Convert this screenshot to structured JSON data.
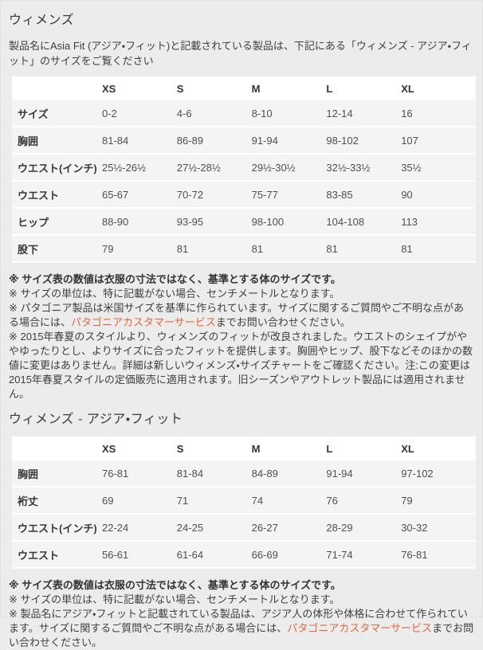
{
  "page": {
    "headings": {
      "womens": "ウィメンズ",
      "womens_asia_fit": "ウィメンズ - アジア・フィット"
    },
    "intro": "製品名にAsia Fit (アジア・フィット)と記載されている製品は、下記にある「ウィメンズ - アジア・フィット」のサイズをご覧ください"
  },
  "colors": {
    "page_background": "#ececec",
    "table_header_background": "#ffffff",
    "table_row_background": "#f4f4f4",
    "link": "#e0673d",
    "text": "#3f3f3f"
  },
  "tables": {
    "womens": {
      "columns": [
        "XS",
        "S",
        "M",
        "L",
        "XL"
      ],
      "rows": [
        {
          "label": "サイズ",
          "values": [
            "0-2",
            "4-6",
            "8-10",
            "12-14",
            "16"
          ]
        },
        {
          "label": "胸囲",
          "values": [
            "81-84",
            "86-89",
            "91-94",
            "98-102",
            "107"
          ]
        },
        {
          "label": "ウエスト(インチ)",
          "values": [
            "25½-26½",
            "27½-28½",
            "29½-30½",
            "32½-33½",
            "35½"
          ]
        },
        {
          "label": "ウエスト",
          "values": [
            "65-67",
            "70-72",
            "75-77",
            "83-85",
            "90"
          ]
        },
        {
          "label": "ヒップ",
          "values": [
            "88-90",
            "93-95",
            "98-100",
            "104-108",
            "113"
          ]
        },
        {
          "label": "股下",
          "values": [
            "79",
            "81",
            "81",
            "81",
            "81"
          ]
        }
      ]
    },
    "womens_asia_fit": {
      "columns": [
        "XS",
        "S",
        "M",
        "L",
        "XL"
      ],
      "rows": [
        {
          "label": "胸囲",
          "values": [
            "76-81",
            "81-84",
            "84-89",
            "91-94",
            "97-102"
          ]
        },
        {
          "label": "裄丈",
          "values": [
            "69",
            "71",
            "74",
            "76",
            "79"
          ]
        },
        {
          "label": "ウエスト(インチ)",
          "values": [
            "22-24",
            "24-25",
            "26-27",
            "28-29",
            "30-32"
          ]
        },
        {
          "label": "ウエスト",
          "values": [
            "56-61",
            "61-64",
            "66-69",
            "71-74",
            "76-81"
          ]
        }
      ]
    }
  },
  "notes": {
    "womens": [
      {
        "bold": true,
        "segments": [
          {
            "text": "※ サイズ表の数値は衣服の寸法ではなく、基準とする体のサイズです。"
          }
        ]
      },
      {
        "bold": false,
        "segments": [
          {
            "text": "※ サイズの単位は、特に記載がない場合、センチメートルとなります。"
          }
        ]
      },
      {
        "bold": false,
        "segments": [
          {
            "text": "※ パタゴニア製品は米国サイズを基準に作られています。サイズに関するご質問やご不明な点がある場合には、"
          },
          {
            "text": "パタゴニアカスタマーサービス",
            "link": true
          },
          {
            "text": "までお問い合わせください。"
          }
        ]
      },
      {
        "bold": false,
        "segments": [
          {
            "text": "※ 2015年春夏のスタイルより、ウィメンズのフィットが改良されました。ウエストのシェイプがややゆったりとし、よりサイズに合ったフィットを提供します。胸囲やヒップ、股下などそのほかの数値に変更はありません。詳細は新しいウィメンズ・サイズチャートをご確認ください。注:この変更は2015年春夏スタイルの定価販売に適用されます。旧シーズンやアウトレット製品には適用されません。"
          }
        ]
      }
    ],
    "womens_asia_fit": [
      {
        "bold": true,
        "segments": [
          {
            "text": "※ サイズ表の数値は衣服の寸法ではなく、基準とする体のサイズです。"
          }
        ]
      },
      {
        "bold": false,
        "segments": [
          {
            "text": "※ サイズの単位は、特に記載がない場合、センチメートルとなります。"
          }
        ]
      },
      {
        "bold": false,
        "segments": [
          {
            "text": "※ 製品名にアジア・フィットと記載されている製品は、アジア人の体形や体格に合わせて作られています。サイズに関するご質問やご不明な点がある場合には、"
          },
          {
            "text": "パタゴニアカスタマーサービス",
            "link": true
          },
          {
            "text": "までお問い合わせください。"
          }
        ]
      }
    ]
  }
}
